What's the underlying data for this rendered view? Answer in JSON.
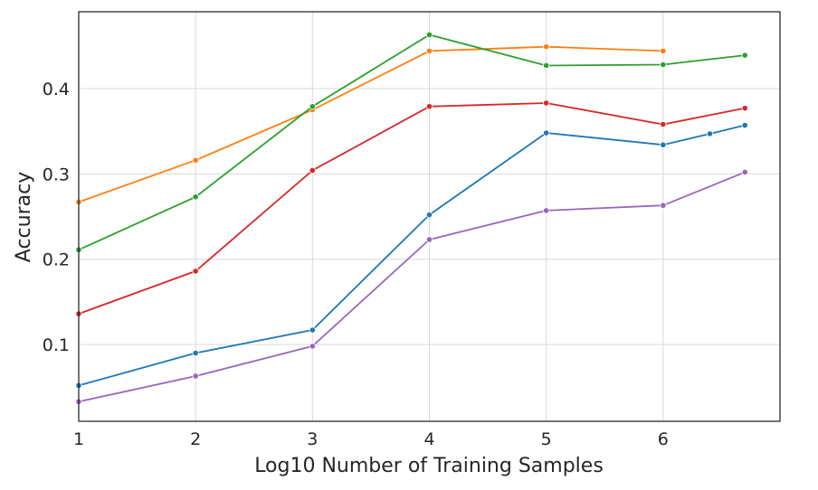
{
  "chart_data": {
    "type": "line",
    "title": "",
    "xlabel": "Log10 Number of Training Samples",
    "ylabel": "Accuracy",
    "xlim": [
      1,
      7
    ],
    "ylim": [
      0.01,
      0.49
    ],
    "x_ticks": [
      "1",
      "2",
      "3",
      "4",
      "5",
      "6"
    ],
    "y_ticks": [
      "0.1",
      "0.2",
      "0.3",
      "0.4"
    ],
    "grid": true,
    "legend": false,
    "series": [
      {
        "color": "#ff7f0e",
        "points": [
          [
            1,
            0.267
          ],
          [
            2,
            0.316
          ],
          [
            3,
            0.375
          ],
          [
            4,
            0.444
          ],
          [
            5,
            0.449
          ],
          [
            6,
            0.444
          ]
        ]
      },
      {
        "color": "#2ca02c",
        "points": [
          [
            1,
            0.211
          ],
          [
            2,
            0.273
          ],
          [
            3,
            0.379
          ],
          [
            4,
            0.463
          ],
          [
            5,
            0.427
          ],
          [
            6,
            0.428
          ],
          [
            6.7,
            0.439
          ]
        ]
      },
      {
        "color": "#d62728",
        "points": [
          [
            1,
            0.136
          ],
          [
            2,
            0.186
          ],
          [
            3,
            0.304
          ],
          [
            4,
            0.379
          ],
          [
            5,
            0.383
          ],
          [
            6,
            0.358
          ],
          [
            6.7,
            0.377
          ]
        ]
      },
      {
        "color": "#1f77b4",
        "points": [
          [
            1,
            0.052
          ],
          [
            2,
            0.09
          ],
          [
            3,
            0.117
          ],
          [
            4,
            0.252
          ],
          [
            5,
            0.348
          ],
          [
            6,
            0.334
          ],
          [
            6.4,
            0.347
          ],
          [
            6.7,
            0.357
          ]
        ]
      },
      {
        "color": "#9467bd",
        "points": [
          [
            1,
            0.033
          ],
          [
            2,
            0.063
          ],
          [
            3,
            0.098
          ],
          [
            4,
            0.223
          ],
          [
            5,
            0.257
          ],
          [
            6,
            0.263
          ],
          [
            6.7,
            0.302
          ]
        ]
      }
    ]
  }
}
